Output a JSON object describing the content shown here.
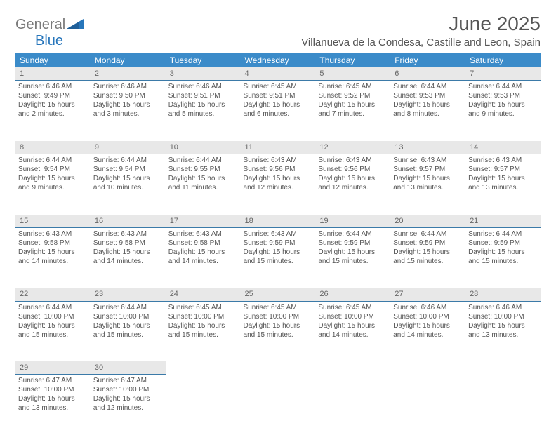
{
  "logo": {
    "general": "General",
    "blue": "Blue"
  },
  "title": "June 2025",
  "location": "Villanueva de la Condesa, Castille and Leon, Spain",
  "colors": {
    "header_bg": "#3b8bc9",
    "header_text": "#ffffff",
    "daynum_bg": "#e8e8e8",
    "daynum_border": "#3b7aa8",
    "body_text": "#555555",
    "logo_gray": "#7a7a7a",
    "logo_blue": "#2776bb",
    "page_bg": "#ffffff"
  },
  "weekdays": [
    "Sunday",
    "Monday",
    "Tuesday",
    "Wednesday",
    "Thursday",
    "Friday",
    "Saturday"
  ],
  "weeks": [
    {
      "nums": [
        "1",
        "2",
        "3",
        "4",
        "5",
        "6",
        "7"
      ],
      "cells": [
        {
          "sunrise": "Sunrise: 6:46 AM",
          "sunset": "Sunset: 9:49 PM",
          "day1": "Daylight: 15 hours",
          "day2": "and 2 minutes."
        },
        {
          "sunrise": "Sunrise: 6:46 AM",
          "sunset": "Sunset: 9:50 PM",
          "day1": "Daylight: 15 hours",
          "day2": "and 3 minutes."
        },
        {
          "sunrise": "Sunrise: 6:46 AM",
          "sunset": "Sunset: 9:51 PM",
          "day1": "Daylight: 15 hours",
          "day2": "and 5 minutes."
        },
        {
          "sunrise": "Sunrise: 6:45 AM",
          "sunset": "Sunset: 9:51 PM",
          "day1": "Daylight: 15 hours",
          "day2": "and 6 minutes."
        },
        {
          "sunrise": "Sunrise: 6:45 AM",
          "sunset": "Sunset: 9:52 PM",
          "day1": "Daylight: 15 hours",
          "day2": "and 7 minutes."
        },
        {
          "sunrise": "Sunrise: 6:44 AM",
          "sunset": "Sunset: 9:53 PM",
          "day1": "Daylight: 15 hours",
          "day2": "and 8 minutes."
        },
        {
          "sunrise": "Sunrise: 6:44 AM",
          "sunset": "Sunset: 9:53 PM",
          "day1": "Daylight: 15 hours",
          "day2": "and 9 minutes."
        }
      ]
    },
    {
      "nums": [
        "8",
        "9",
        "10",
        "11",
        "12",
        "13",
        "14"
      ],
      "cells": [
        {
          "sunrise": "Sunrise: 6:44 AM",
          "sunset": "Sunset: 9:54 PM",
          "day1": "Daylight: 15 hours",
          "day2": "and 9 minutes."
        },
        {
          "sunrise": "Sunrise: 6:44 AM",
          "sunset": "Sunset: 9:54 PM",
          "day1": "Daylight: 15 hours",
          "day2": "and 10 minutes."
        },
        {
          "sunrise": "Sunrise: 6:44 AM",
          "sunset": "Sunset: 9:55 PM",
          "day1": "Daylight: 15 hours",
          "day2": "and 11 minutes."
        },
        {
          "sunrise": "Sunrise: 6:43 AM",
          "sunset": "Sunset: 9:56 PM",
          "day1": "Daylight: 15 hours",
          "day2": "and 12 minutes."
        },
        {
          "sunrise": "Sunrise: 6:43 AM",
          "sunset": "Sunset: 9:56 PM",
          "day1": "Daylight: 15 hours",
          "day2": "and 12 minutes."
        },
        {
          "sunrise": "Sunrise: 6:43 AM",
          "sunset": "Sunset: 9:57 PM",
          "day1": "Daylight: 15 hours",
          "day2": "and 13 minutes."
        },
        {
          "sunrise": "Sunrise: 6:43 AM",
          "sunset": "Sunset: 9:57 PM",
          "day1": "Daylight: 15 hours",
          "day2": "and 13 minutes."
        }
      ]
    },
    {
      "nums": [
        "15",
        "16",
        "17",
        "18",
        "19",
        "20",
        "21"
      ],
      "cells": [
        {
          "sunrise": "Sunrise: 6:43 AM",
          "sunset": "Sunset: 9:58 PM",
          "day1": "Daylight: 15 hours",
          "day2": "and 14 minutes."
        },
        {
          "sunrise": "Sunrise: 6:43 AM",
          "sunset": "Sunset: 9:58 PM",
          "day1": "Daylight: 15 hours",
          "day2": "and 14 minutes."
        },
        {
          "sunrise": "Sunrise: 6:43 AM",
          "sunset": "Sunset: 9:58 PM",
          "day1": "Daylight: 15 hours",
          "day2": "and 14 minutes."
        },
        {
          "sunrise": "Sunrise: 6:43 AM",
          "sunset": "Sunset: 9:59 PM",
          "day1": "Daylight: 15 hours",
          "day2": "and 15 minutes."
        },
        {
          "sunrise": "Sunrise: 6:44 AM",
          "sunset": "Sunset: 9:59 PM",
          "day1": "Daylight: 15 hours",
          "day2": "and 15 minutes."
        },
        {
          "sunrise": "Sunrise: 6:44 AM",
          "sunset": "Sunset: 9:59 PM",
          "day1": "Daylight: 15 hours",
          "day2": "and 15 minutes."
        },
        {
          "sunrise": "Sunrise: 6:44 AM",
          "sunset": "Sunset: 9:59 PM",
          "day1": "Daylight: 15 hours",
          "day2": "and 15 minutes."
        }
      ]
    },
    {
      "nums": [
        "22",
        "23",
        "24",
        "25",
        "26",
        "27",
        "28"
      ],
      "cells": [
        {
          "sunrise": "Sunrise: 6:44 AM",
          "sunset": "Sunset: 10:00 PM",
          "day1": "Daylight: 15 hours",
          "day2": "and 15 minutes."
        },
        {
          "sunrise": "Sunrise: 6:44 AM",
          "sunset": "Sunset: 10:00 PM",
          "day1": "Daylight: 15 hours",
          "day2": "and 15 minutes."
        },
        {
          "sunrise": "Sunrise: 6:45 AM",
          "sunset": "Sunset: 10:00 PM",
          "day1": "Daylight: 15 hours",
          "day2": "and 15 minutes."
        },
        {
          "sunrise": "Sunrise: 6:45 AM",
          "sunset": "Sunset: 10:00 PM",
          "day1": "Daylight: 15 hours",
          "day2": "and 15 minutes."
        },
        {
          "sunrise": "Sunrise: 6:45 AM",
          "sunset": "Sunset: 10:00 PM",
          "day1": "Daylight: 15 hours",
          "day2": "and 14 minutes."
        },
        {
          "sunrise": "Sunrise: 6:46 AM",
          "sunset": "Sunset: 10:00 PM",
          "day1": "Daylight: 15 hours",
          "day2": "and 14 minutes."
        },
        {
          "sunrise": "Sunrise: 6:46 AM",
          "sunset": "Sunset: 10:00 PM",
          "day1": "Daylight: 15 hours",
          "day2": "and 13 minutes."
        }
      ]
    },
    {
      "nums": [
        "29",
        "30",
        "",
        "",
        "",
        "",
        ""
      ],
      "cells": [
        {
          "sunrise": "Sunrise: 6:47 AM",
          "sunset": "Sunset: 10:00 PM",
          "day1": "Daylight: 15 hours",
          "day2": "and 13 minutes."
        },
        {
          "sunrise": "Sunrise: 6:47 AM",
          "sunset": "Sunset: 10:00 PM",
          "day1": "Daylight: 15 hours",
          "day2": "and 12 minutes."
        },
        null,
        null,
        null,
        null,
        null
      ]
    }
  ]
}
